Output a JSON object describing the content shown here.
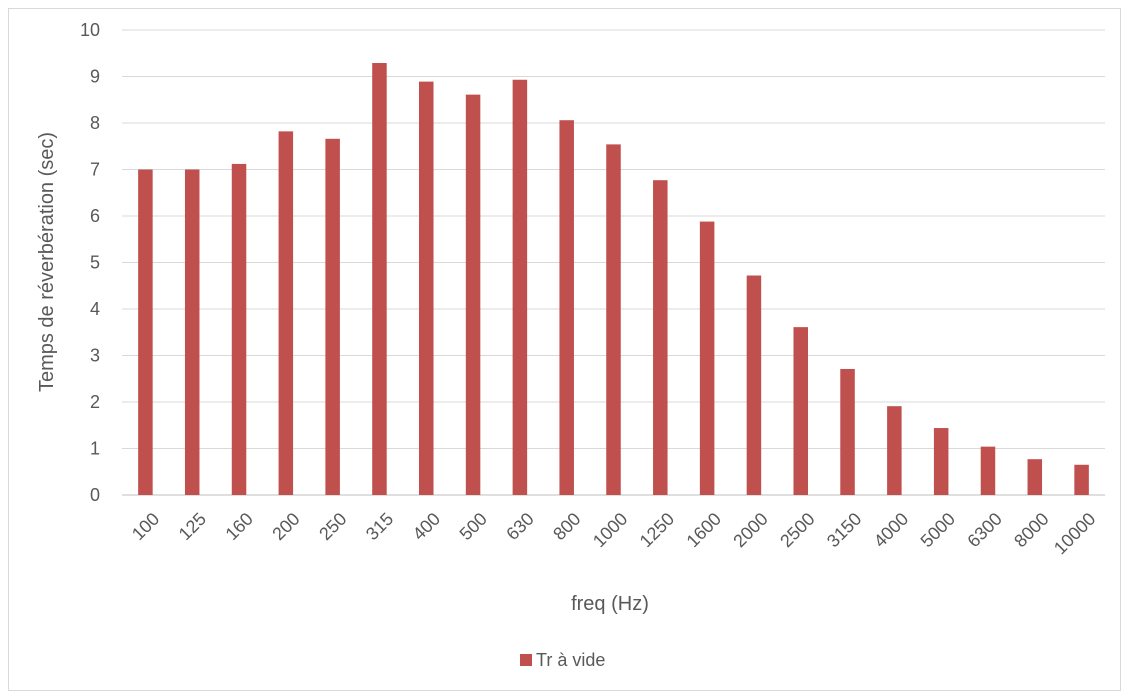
{
  "chart_data": {
    "type": "bar",
    "categories": [
      "100",
      "125",
      "160",
      "200",
      "250",
      "315",
      "400",
      "500",
      "630",
      "800",
      "1000",
      "1250",
      "1600",
      "2000",
      "2500",
      "3150",
      "4000",
      "5000",
      "6300",
      "8000",
      "10000"
    ],
    "series": [
      {
        "name": "Tr à vide",
        "color": "#c0504d",
        "values": [
          7.0,
          7.0,
          7.12,
          7.82,
          7.66,
          9.29,
          8.89,
          8.61,
          8.93,
          8.06,
          7.54,
          6.77,
          5.88,
          4.72,
          3.61,
          2.71,
          1.91,
          1.44,
          1.04,
          0.77,
          0.65
        ]
      }
    ],
    "yticks": [
      "0",
      "1",
      "2",
      "3",
      "4",
      "5",
      "6",
      "7",
      "8",
      "9",
      "10"
    ],
    "xlabel": "freq (Hz)",
    "ylabel": "Temps de réverbération (sec)",
    "ylim": [
      0,
      10
    ],
    "grid": true,
    "legend_position": "bottom"
  }
}
